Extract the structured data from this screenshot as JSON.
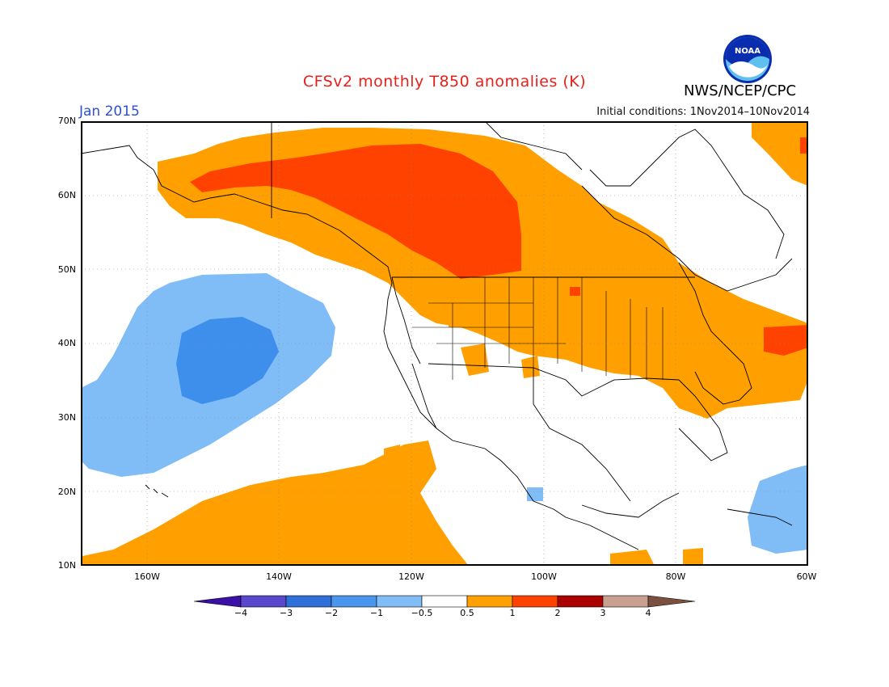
{
  "header": {
    "title": "CFSv2 monthly T850 anomalies (K)",
    "agency": "NWS/NCEP/CPC",
    "period": "Jan 2015",
    "initial_conditions": "Initial conditions: 1Nov2014–10Nov2014",
    "logo_text": "NOAA"
  },
  "axes": {
    "lat_labels": [
      "70N",
      "60N",
      "50N",
      "40N",
      "30N",
      "20N",
      "10N"
    ],
    "lon_labels": [
      "160W",
      "140W",
      "120W",
      "100W",
      "80W",
      "60W"
    ],
    "lat_range": [
      10,
      70
    ],
    "lon_range": [
      -170,
      -60
    ]
  },
  "legend": {
    "labels": [
      "−4",
      "−3",
      "−2",
      "−1",
      "−0.5",
      "0.5",
      "1",
      "2",
      "3",
      "4"
    ],
    "colors": [
      "#3a10a8",
      "#5a48cc",
      "#2f6fd8",
      "#4a96ec",
      "#80bcf6",
      "#ffffff",
      "#ffa000",
      "#ff4200",
      "#aa0000",
      "#c8a090",
      "#7a5040"
    ]
  },
  "colors": {
    "above_0_5": "#ffa000",
    "above_1": "#ff4200",
    "above_2": "#e02a00",
    "below_0_5": "#80bcf6",
    "below_1": "#3e8fec",
    "title": "#e8201c",
    "period": "#2d4fd6"
  }
}
